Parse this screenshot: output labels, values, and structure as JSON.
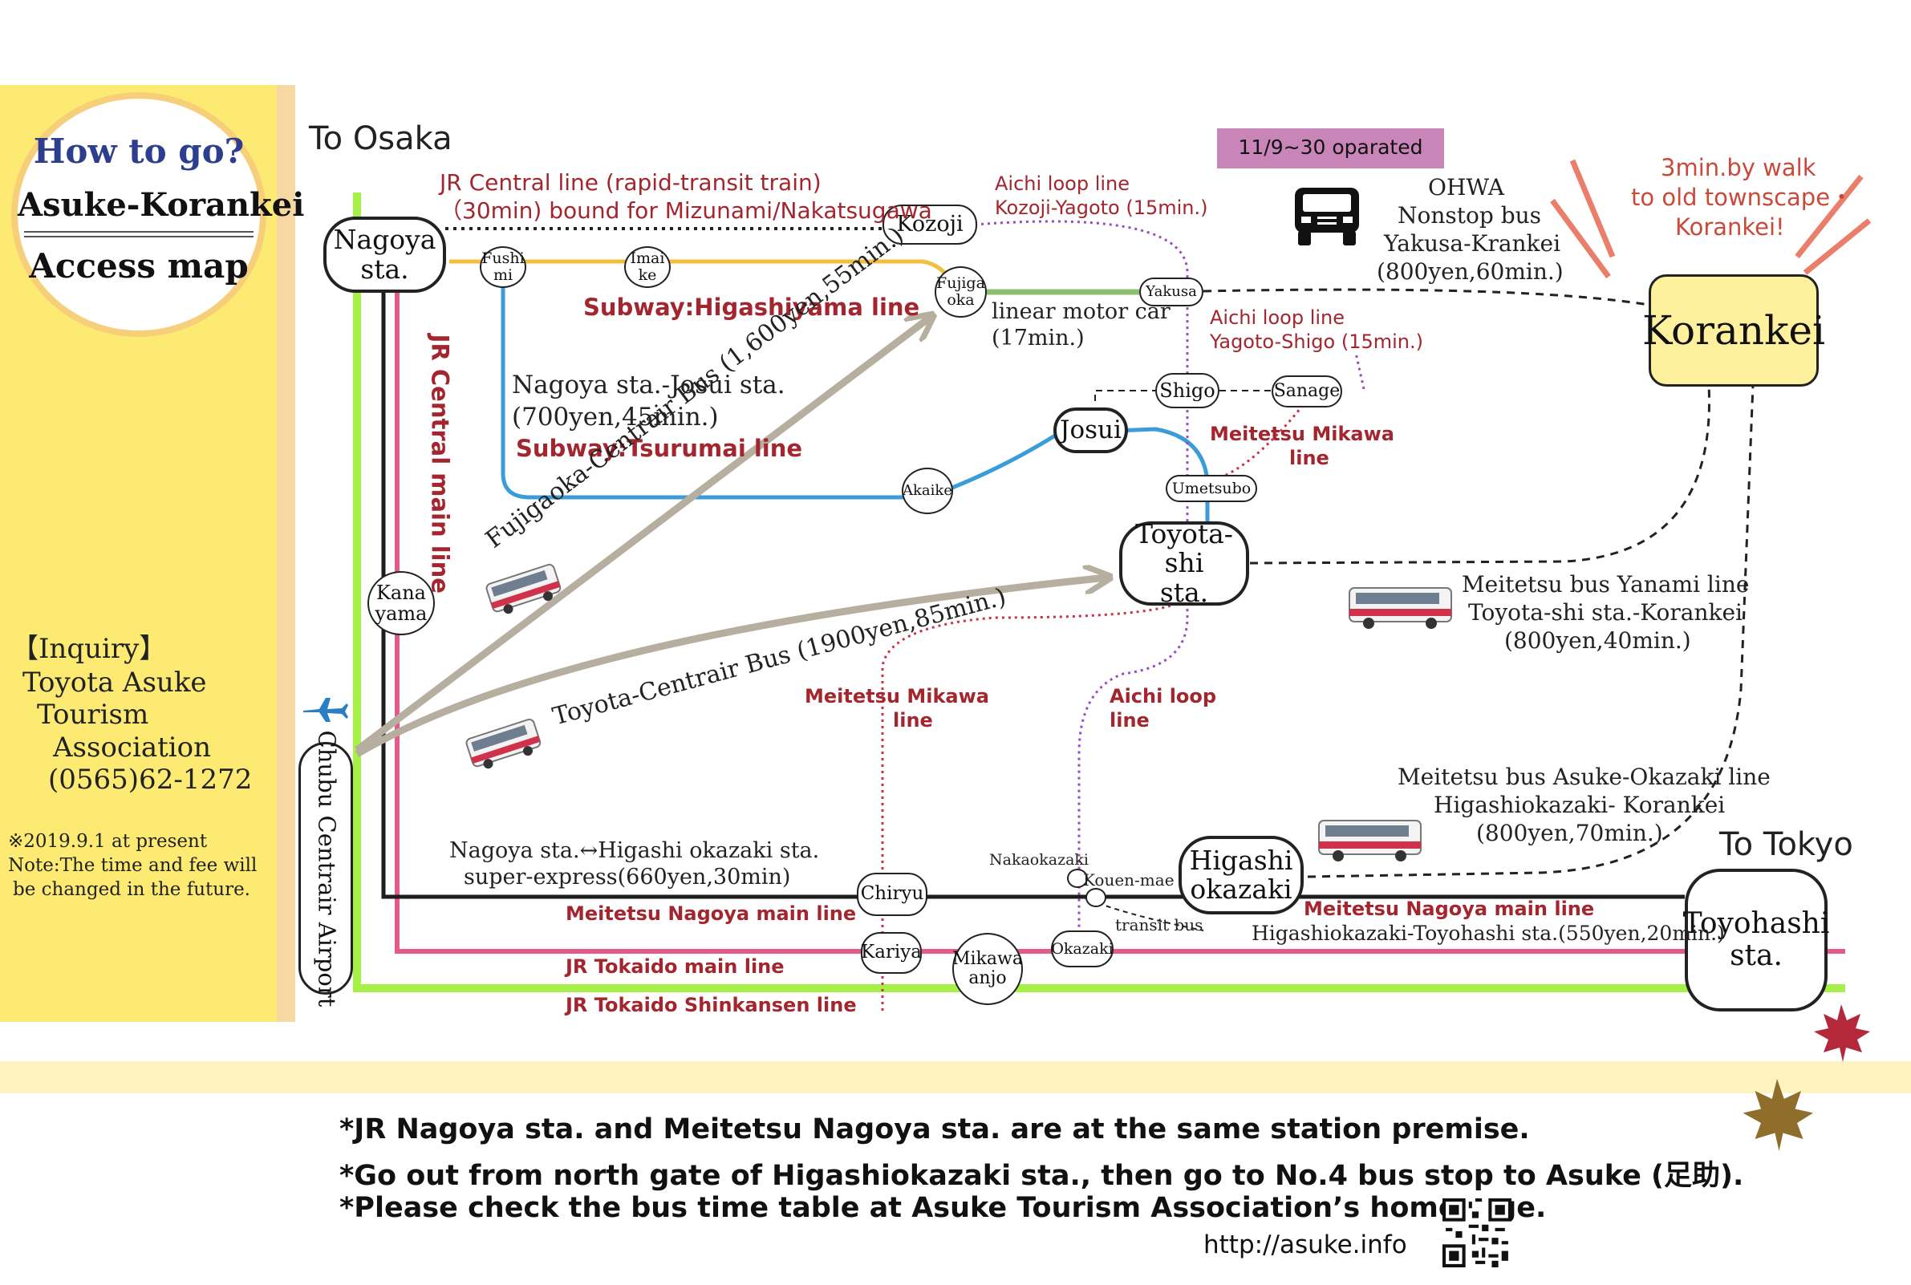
{
  "colors": {
    "panel_yellow": "#fdea73",
    "jr_shinkansen_green": "#a7f047",
    "jr_tokaido_pink": "#e45a89",
    "meitetsu_black": "#1e1e1e",
    "subway_higashiyama_yellow": "#f0bf3d",
    "subway_tsurumai_blue": "#3a9cd8",
    "linear_green": "#8cc070",
    "aichi_loop_purple": "#9b4ac6",
    "meitetsu_mikawa_red": "#c8324a",
    "bus_route_gray": "#b6ae9e",
    "label_red": "#a3262f",
    "korankei_fill": "#fdf19e",
    "notice_pink": "#c985b7"
  },
  "title": {
    "line1": "How to go?",
    "line2": "Asuke-Korankei",
    "line3": "Access map"
  },
  "inquiry": {
    "heading": "【Inquiry】",
    "org1": "Toyota Asuke",
    "org2": "Tourism",
    "org3": "Association",
    "phone": "(0565)62-1272"
  },
  "disclaimer": {
    "line1": "※2019.9.1 at present",
    "line2": "Note:The time and fee will",
    "line3": "be changed in the future."
  },
  "directions": {
    "to_osaka": "To Osaka",
    "to_tokyo": "To Tokyo"
  },
  "stations": {
    "nagoya": [
      "Nagoya",
      "sta."
    ],
    "fushimi": [
      "Fushi",
      "mi"
    ],
    "imaike": [
      "Imai",
      "ke"
    ],
    "fujigaoka": [
      "Fujiga",
      "oka"
    ],
    "kozoji": "Kozoji",
    "yakusa": "Yakusa",
    "shigo": "Shigo",
    "sanage": "Sanage",
    "josui": "Josui",
    "akaike": "Akaike",
    "umetsubo": "Umetsubo",
    "toyotashi": [
      "Toyota-shi",
      "sta."
    ],
    "kanayama": [
      "Kana",
      "yama"
    ],
    "airport": "Chubu Centrair Airport",
    "chiryu": "Chiryu",
    "kariya": "Kariya",
    "mikawaanjo": [
      "Mikawa",
      "anjo"
    ],
    "nakaokazaki": "Nakaokazaki",
    "kouenmae": "Kouen-mae",
    "okazaki": "Okazaki",
    "higashiokazaki": [
      "Higashi",
      "okazaki"
    ],
    "toyohashi": [
      "Toyohashi",
      "sta."
    ],
    "korankei": "Korankei"
  },
  "routes": {
    "jr_central_rapid": [
      "JR Central line (rapid-transit train)",
      "（30min) bound for Mizunami/Nakatsugawa"
    ],
    "subway_higashiyama": "Subway:Higashiyama line",
    "linear": [
      "linear motor car",
      "(17min.)"
    ],
    "aichi_loop_kozoji": [
      "Aichi loop line",
      "Kozoji-Yagoto (15min.)"
    ],
    "aichi_loop_yagoto": [
      "Aichi loop line",
      "Yagoto-Shigo (15min.)"
    ],
    "tsurumai_fare": [
      "Nagoya sta.-Josui sta.",
      "(700yen,45min.)"
    ],
    "subway_tsurumai": "Subway:Tsurumai line",
    "jr_central_main": "JR Central main line",
    "meitetsu_mikawa_upper": [
      "Meitetsu Mikawa",
      "line"
    ],
    "meitetsu_mikawa_lower": [
      "Meitetsu Mikawa",
      "line"
    ],
    "aichi_loop_lower": [
      "Aichi loop",
      "line"
    ],
    "fujigaoka_bus": "Fujigaoka-Centrair Bus (1,600yen,55min.)",
    "toyota_bus": "Toyota-Centrair Bus (1900yen,85min.)",
    "superexpress": [
      "Nagoya sta.↔Higashi okazaki sta.",
      "super-express(660yen,30min)"
    ],
    "meitetsu_nagoya_main_left": "Meitetsu Nagoya main line",
    "meitetsu_nagoya_main_right": "Meitetsu Nagoya main line",
    "jr_tokaido_main": "JR Tokaido main line",
    "jr_shinkansen": "JR Tokaido Shinkansen line",
    "transit_bus": "transit bus",
    "higashiokazaki_toyohashi": "Higashiokazaki-Toyohashi sta.(550yen,20min.)"
  },
  "buses": {
    "notice": "11/9∼30 oparated",
    "ohwa": [
      "OHWA",
      "Nonstop bus",
      "Yakusa-Krankei",
      "(800yen,60min.)"
    ],
    "yanami": [
      "Meitetsu bus Yanami line",
      "Toyota-shi sta.-Korankei",
      "(800yen,40min.)"
    ],
    "asuke_okazaki": [
      "Meitetsu bus Asuke-Okazaki line",
      "Higashiokazaki- Korankei",
      "(800yen,70min.)"
    ],
    "walk": [
      "3min.by walk",
      "to old townscape・",
      "Korankei!"
    ]
  },
  "footer_notes": [
    "*JR Nagoya sta. and Meitetsu Nagoya sta. are at the same station premise.",
    "*Go out from north gate of Higashiokazaki sta., then go to No.4 bus stop to Asuke (足助).",
    "*Please check the bus time table at Asuke Tourism Association’s homepage."
  ],
  "url": "http://asuke.info",
  "icons": [
    "airplane-icon",
    "bus-icon",
    "truck-icon",
    "maple-leaf-icon",
    "qr-code-icon"
  ]
}
